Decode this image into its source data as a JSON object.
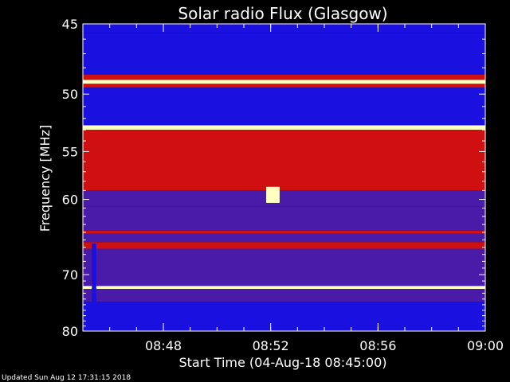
{
  "chart_data": {
    "type": "heatmap",
    "title": "Solar radio Flux (Glasgow)",
    "xlabel": "Start Time (04-Aug-18 08:45:00)",
    "ylabel": "Frequency [MHz]",
    "footer": "Updated Sun Aug 12 17:31:15 2018",
    "x_start": "08:45",
    "x_end": "09:00",
    "x_ticks": [
      "08:48",
      "08:52",
      "08:56",
      "09:00"
    ],
    "y_range": [
      45,
      80
    ],
    "y_ticks": [
      45,
      50,
      55,
      60,
      70,
      80
    ],
    "y_scale": "reciprocal",
    "colors": {
      "low": "#1a10e0",
      "mid": "#4a1aa8",
      "high": "#d01010",
      "peak": "#ffffc0",
      "background": "#000000"
    },
    "bands": [
      {
        "f_from": 45.0,
        "f_to": 45.6,
        "level": "low"
      },
      {
        "f_from": 45.6,
        "f_to": 48.5,
        "level": "low"
      },
      {
        "f_from": 48.5,
        "f_to": 48.9,
        "level": "high"
      },
      {
        "f_from": 48.9,
        "f_to": 49.2,
        "level": "peak"
      },
      {
        "f_from": 49.2,
        "f_to": 49.5,
        "level": "high"
      },
      {
        "f_from": 49.5,
        "f_to": 52.6,
        "level": "low"
      },
      {
        "f_from": 52.6,
        "f_to": 53.0,
        "level": "peak"
      },
      {
        "f_from": 53.0,
        "f_to": 59.0,
        "level": "high"
      },
      {
        "f_from": 59.0,
        "f_to": 60.8,
        "level": "mid"
      },
      {
        "f_from": 60.8,
        "f_to": 63.8,
        "level": "mid"
      },
      {
        "f_from": 63.8,
        "f_to": 64.2,
        "level": "high"
      },
      {
        "f_from": 64.2,
        "f_to": 65.3,
        "level": "mid"
      },
      {
        "f_from": 65.3,
        "f_to": 66.2,
        "level": "high"
      },
      {
        "f_from": 66.2,
        "f_to": 71.8,
        "level": "mid"
      },
      {
        "f_from": 71.8,
        "f_to": 72.3,
        "level": "peak"
      },
      {
        "f_from": 72.3,
        "f_to": 74.5,
        "level": "mid"
      },
      {
        "f_from": 74.5,
        "f_to": 80.0,
        "level": "low"
      }
    ],
    "features": [
      {
        "time_from": "08:51:50",
        "time_to": "08:52:20",
        "f_from": 58.6,
        "f_to": 60.4,
        "level": "peak"
      },
      {
        "time_from": "08:45:20",
        "time_to": "08:45:30",
        "f_from": 65.5,
        "f_to": 74.5,
        "level": "low"
      }
    ]
  }
}
